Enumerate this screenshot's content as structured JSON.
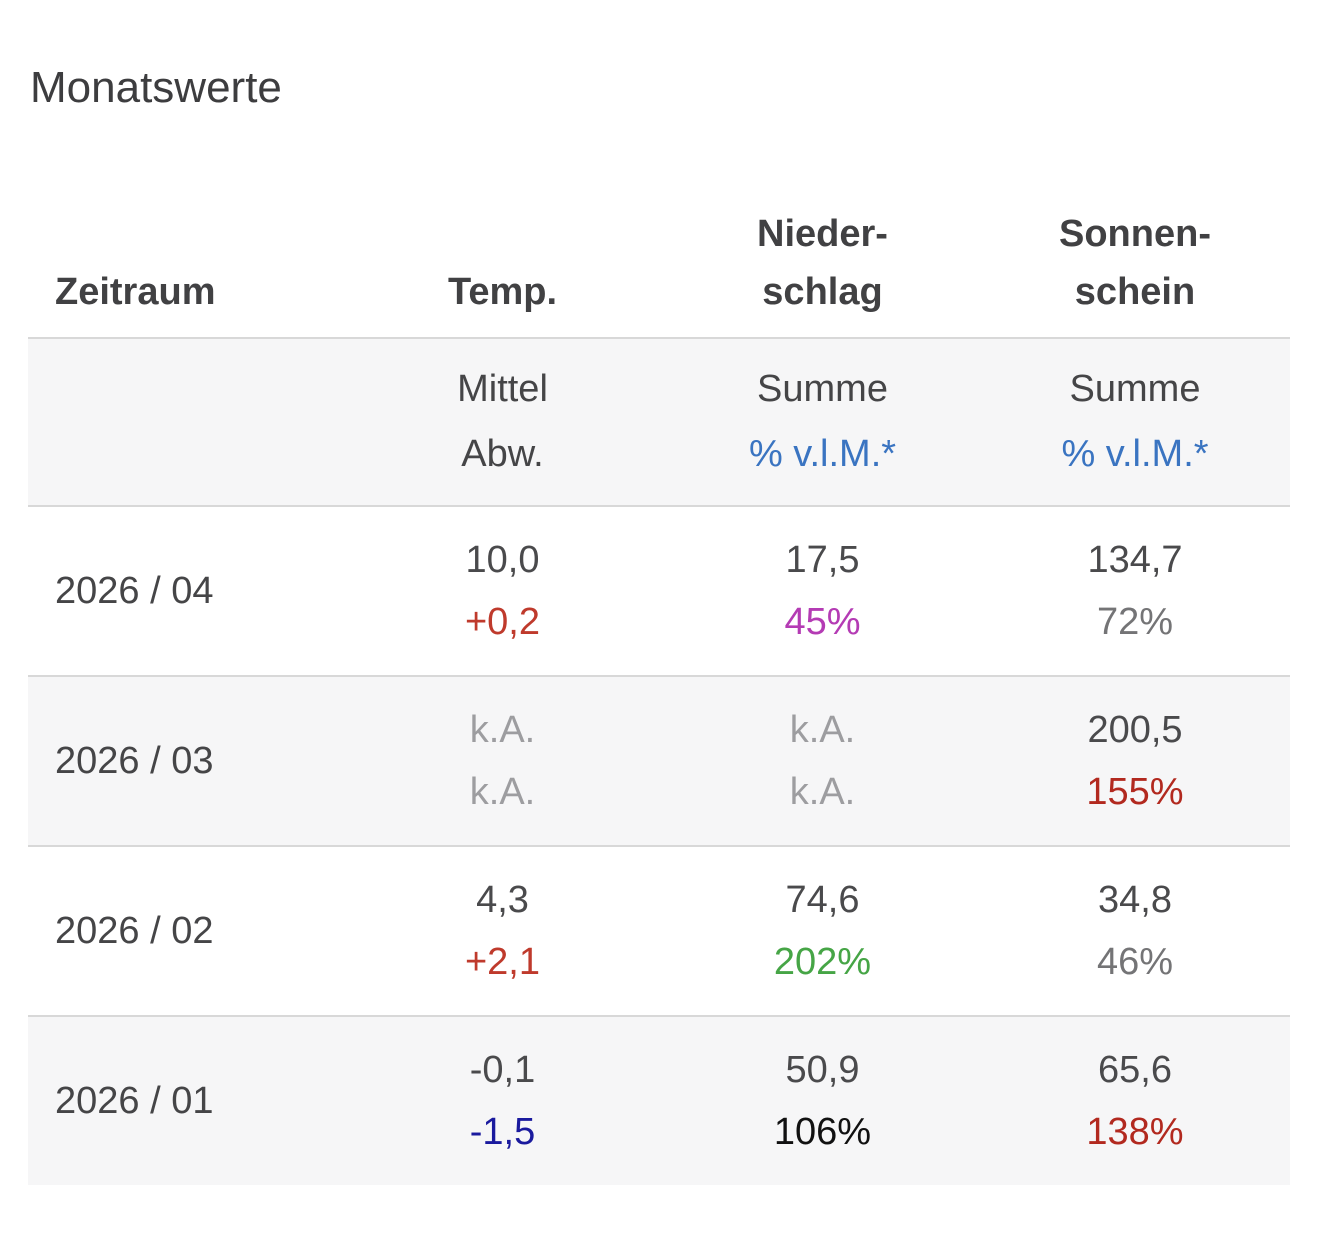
{
  "title": "Monatswerte",
  "colors": {
    "text": "#4a4a4c",
    "header_text": "#414143",
    "link_blue": "#3a74c1",
    "red_deviation": "#bf3a2c",
    "dark_red_pct": "#b2291f",
    "magenta_pct": "#b43bb4",
    "green_pct": "#46a546",
    "navy_deviation": "#1a1a9e",
    "black_pct": "#111111",
    "gray_pct": "#747476",
    "no_data_gray": "#9d9da0",
    "row_alt_bg": "#f6f6f7",
    "border": "#d8d8d8"
  },
  "header": {
    "col_period": "Zeitraum",
    "col_temp": "Temp.",
    "col_precip_l1": "Nieder-",
    "col_precip_l2": "schlag",
    "col_sun_l1": "Sonnen-",
    "col_sun_l2": "schein"
  },
  "subheader": {
    "temp_l1": "Mittel",
    "temp_l2": "Abw.",
    "precip_l1": "Summe",
    "precip_l2": "% v.l.M.*",
    "sun_l1": "Summe",
    "sun_l2": "% v.l.M.*"
  },
  "rows": [
    {
      "period": "2026 / 04",
      "temp": {
        "v": "10,0",
        "vc": "#4a4a4c",
        "s": "+0,2",
        "sc": "#bf3a2c"
      },
      "precip": {
        "v": "17,5",
        "vc": "#4a4a4c",
        "s": "45%",
        "sc": "#b43bb4"
      },
      "sun": {
        "v": "134,7",
        "vc": "#4a4a4c",
        "s": "72%",
        "sc": "#747476"
      }
    },
    {
      "period": "2026 / 03",
      "temp": {
        "v": "k.A.",
        "vc": "#9d9da0",
        "s": "k.A.",
        "sc": "#9d9da0"
      },
      "precip": {
        "v": "k.A.",
        "vc": "#9d9da0",
        "s": "k.A.",
        "sc": "#9d9da0"
      },
      "sun": {
        "v": "200,5",
        "vc": "#4a4a4c",
        "s": "155%",
        "sc": "#b2291f"
      }
    },
    {
      "period": "2026 / 02",
      "temp": {
        "v": "4,3",
        "vc": "#4a4a4c",
        "s": "+2,1",
        "sc": "#bf3a2c"
      },
      "precip": {
        "v": "74,6",
        "vc": "#4a4a4c",
        "s": "202%",
        "sc": "#46a546"
      },
      "sun": {
        "v": "34,8",
        "vc": "#4a4a4c",
        "s": "46%",
        "sc": "#747476"
      }
    },
    {
      "period": "2026 / 01",
      "temp": {
        "v": "-0,1",
        "vc": "#4a4a4c",
        "s": "-1,5",
        "sc": "#1a1a9e"
      },
      "precip": {
        "v": "50,9",
        "vc": "#4a4a4c",
        "s": "106%",
        "sc": "#111111"
      },
      "sun": {
        "v": "65,6",
        "vc": "#4a4a4c",
        "s": "138%",
        "sc": "#b2291f"
      }
    }
  ],
  "chart_data": {
    "type": "table",
    "title": "Monatswerte",
    "columns": [
      "Zeitraum",
      "Temp. Mittel",
      "Temp. Abw.",
      "Niederschlag Summe",
      "Niederschlag % v.l.M.*",
      "Sonnenschein Summe",
      "Sonnenschein % v.l.M.*"
    ],
    "rows": [
      [
        "2026 / 04",
        "10,0",
        "+0,2",
        "17,5",
        "45%",
        "134,7",
        "72%"
      ],
      [
        "2026 / 03",
        "k.A.",
        "k.A.",
        "k.A.",
        "k.A.",
        "200,5",
        "155%"
      ],
      [
        "2026 / 02",
        "4,3",
        "+2,1",
        "74,6",
        "202%",
        "34,8",
        "46%"
      ],
      [
        "2026 / 01",
        "-0,1",
        "-1,5",
        "50,9",
        "106%",
        "65,6",
        "138%"
      ]
    ]
  }
}
